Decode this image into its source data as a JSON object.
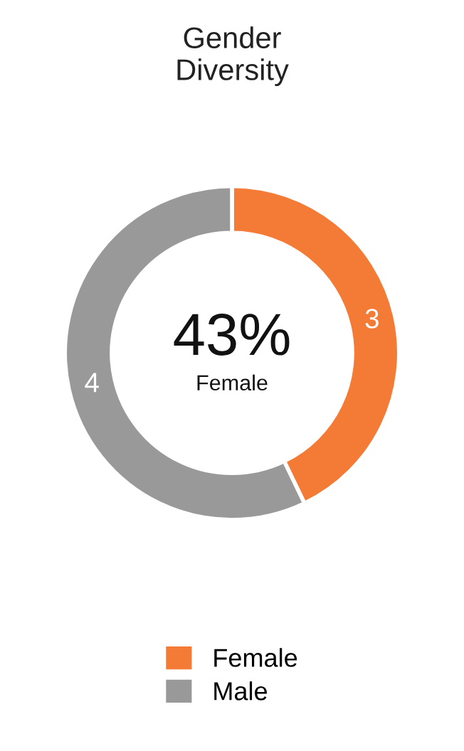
{
  "chart_data": {
    "type": "donut",
    "title": "Gender\nDiversity",
    "categories": [
      "Female",
      "Male"
    ],
    "values": [
      3,
      4
    ],
    "colors": [
      "#f47b36",
      "#999999"
    ],
    "data_labels": true,
    "legend": "bottom",
    "annotations": [
      "43%",
      "Female"
    ]
  }
}
